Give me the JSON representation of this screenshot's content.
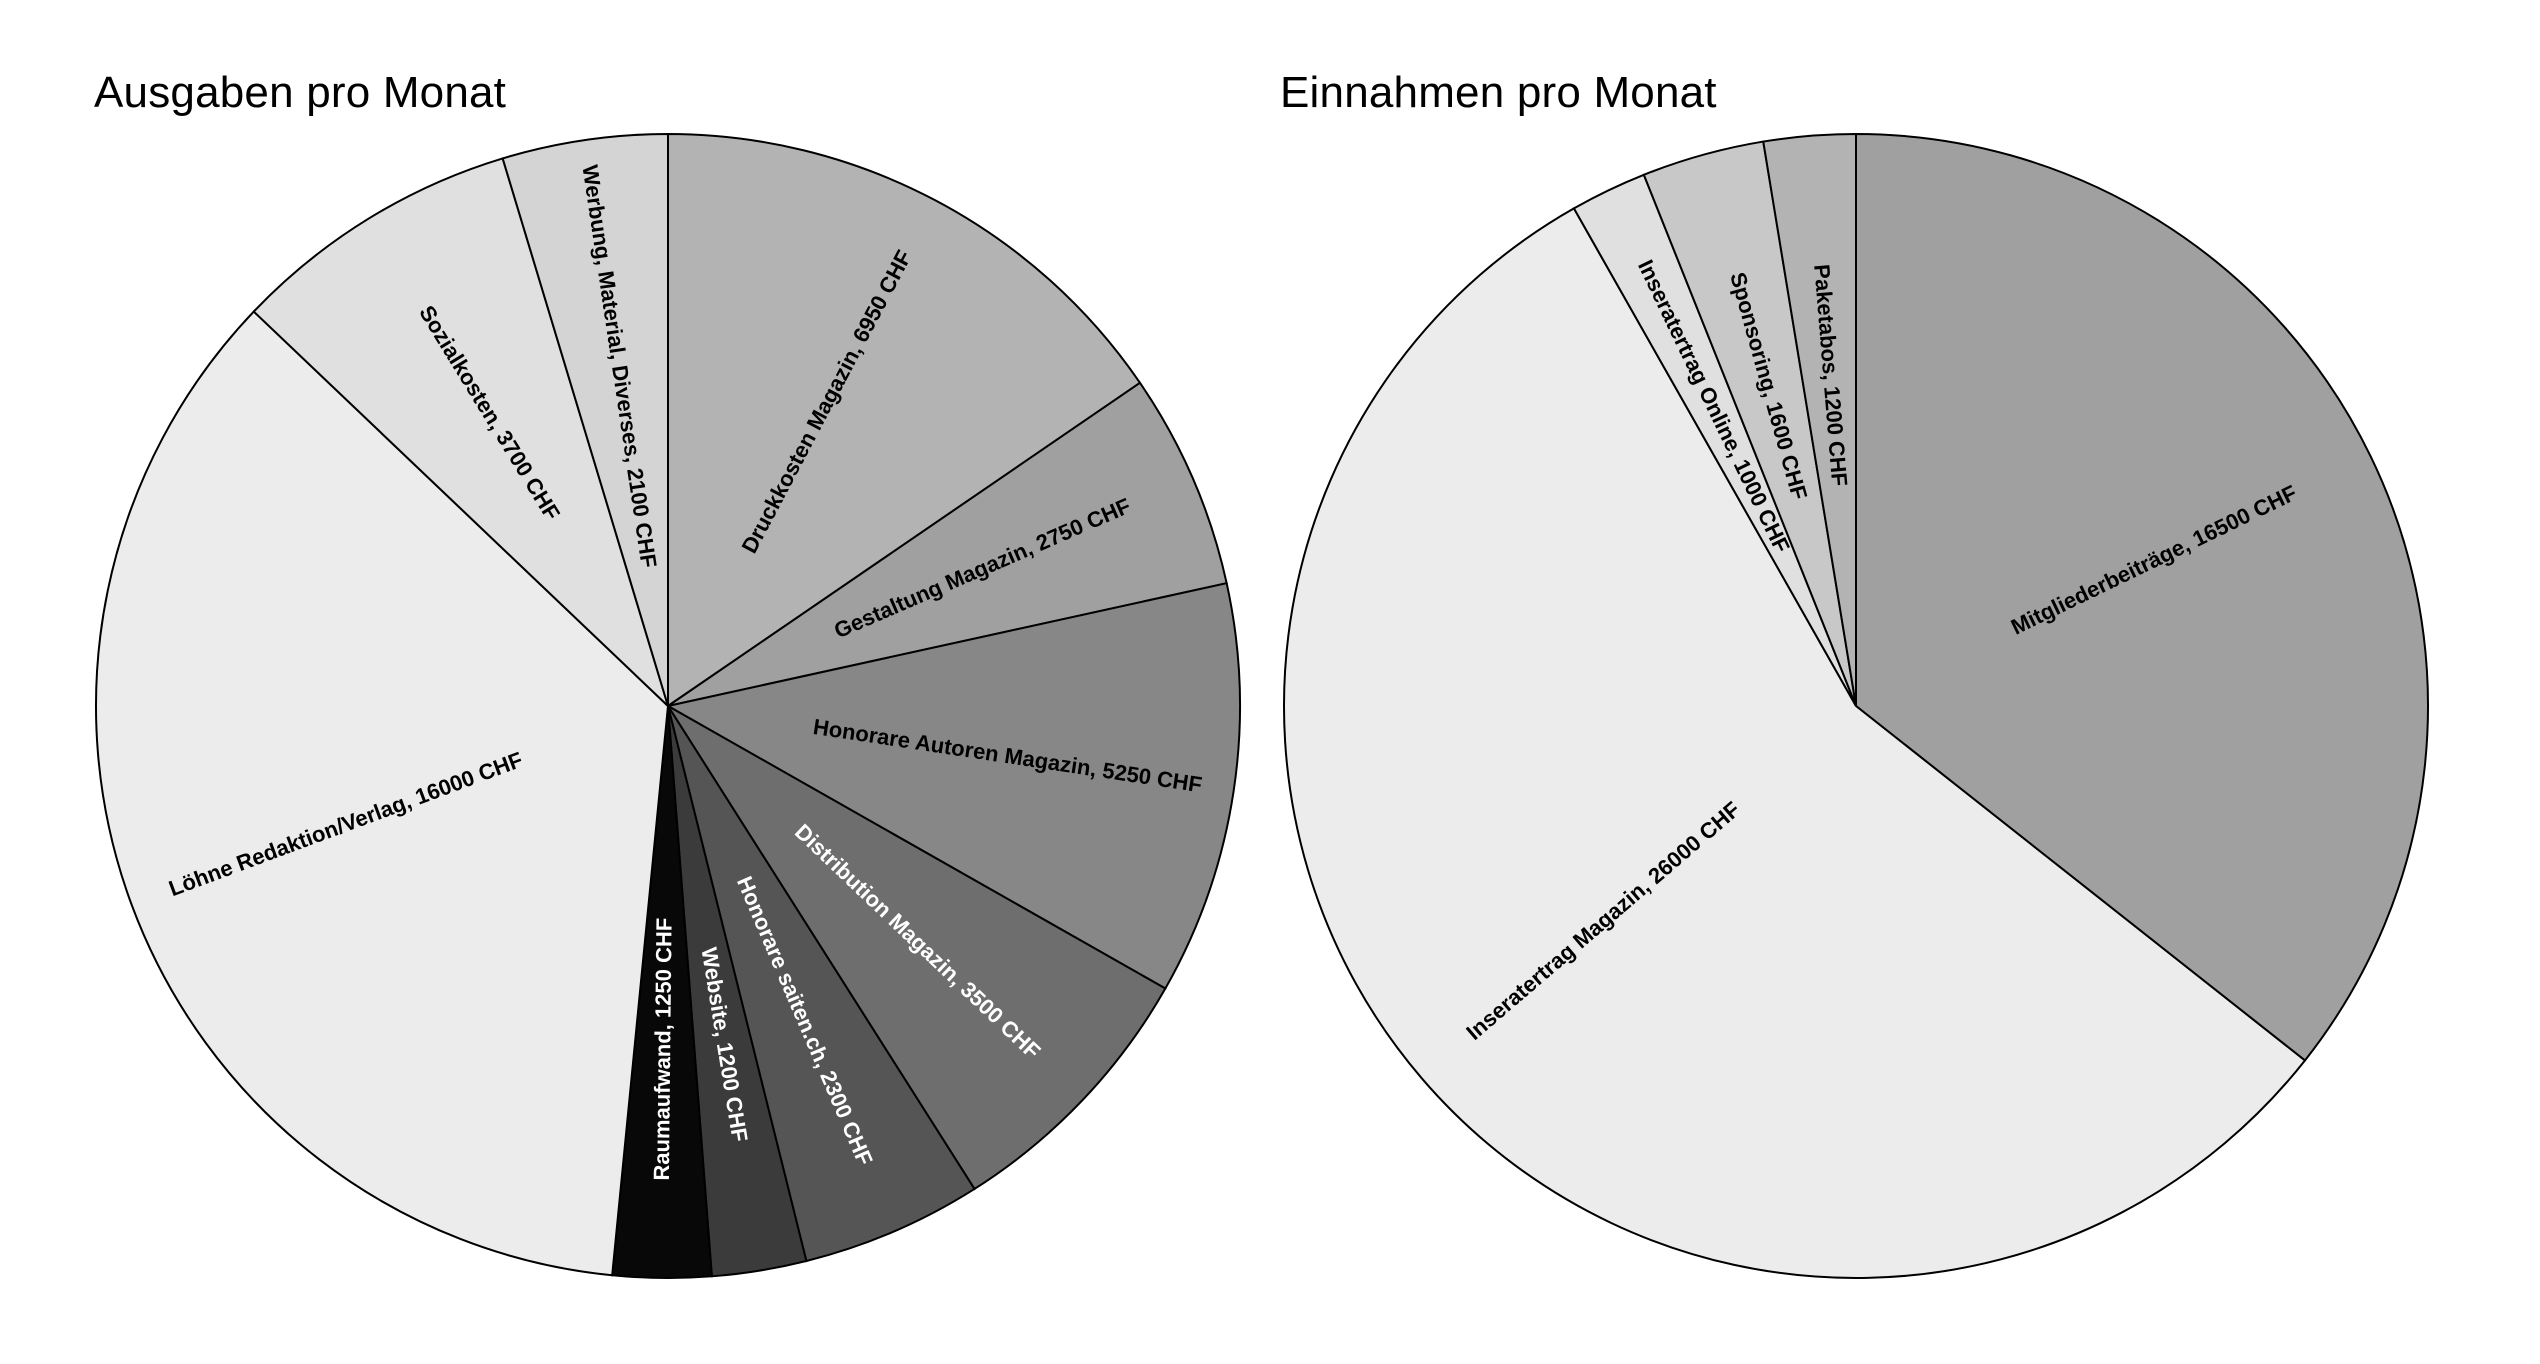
{
  "chart_data": [
    {
      "type": "pie",
      "title": "Ausgaben pro Monat",
      "slices": [
        {
          "label": "Druckkosten Magazin, 6950 CHF",
          "value": 6950,
          "color": "#b3b3b3",
          "text_color": "#000000"
        },
        {
          "label": "Gestaltung Magazin, 2750 CHF",
          "value": 2750,
          "color": "#a0a0a0",
          "text_color": "#000000"
        },
        {
          "label": "Honorare Autoren Magazin, 5250 CHF",
          "value": 5250,
          "color": "#878787",
          "text_color": "#000000"
        },
        {
          "label": "Distribution Magazin, 3500 CHF",
          "value": 3500,
          "color": "#6e6e6e",
          "text_color": "#ffffff"
        },
        {
          "label": "Honorare saiten.ch, 2300 CHF",
          "value": 2300,
          "color": "#555555",
          "text_color": "#ffffff"
        },
        {
          "label": "Website, 1200 CHF",
          "value": 1200,
          "color": "#3b3b3b",
          "text_color": "#ffffff"
        },
        {
          "label": "Raumaufwand, 1250 CHF",
          "value": 1250,
          "color": "#080808",
          "text_color": "#ffffff"
        },
        {
          "label": "Löhne Redaktion/Verlag, 16000 CHF",
          "value": 16000,
          "color": "#ececec",
          "text_color": "#000000"
        },
        {
          "label": "Sozialkosten, 3700 CHF",
          "value": 3700,
          "color": "#e0e0e0",
          "text_color": "#000000"
        },
        {
          "label": "Werbung, Material, Diverses, 2100 CHF",
          "value": 2100,
          "color": "#d4d4d4",
          "text_color": "#000000"
        }
      ]
    },
    {
      "type": "pie",
      "title": "Einnahmen pro Monat",
      "slices": [
        {
          "label": "Mitgliederbeiträge, 16500 CHF",
          "value": 16500,
          "color": "#a0a0a0",
          "text_color": "#000000"
        },
        {
          "label": "Inseratertrag Magazin, 26000 CHF",
          "value": 26000,
          "color": "#ececec",
          "text_color": "#000000"
        },
        {
          "label": "Inseratertrag Online, 1000 CHF",
          "value": 1000,
          "color": "#e0e0e0",
          "text_color": "#000000"
        },
        {
          "label": "Sponsoring, 1600 CHF",
          "value": 1600,
          "color": "#c8c8c8",
          "text_color": "#000000"
        },
        {
          "label": "Paketabos, 1200 CHF",
          "value": 1200,
          "color": "#b3b3b3",
          "text_color": "#000000"
        }
      ]
    }
  ]
}
